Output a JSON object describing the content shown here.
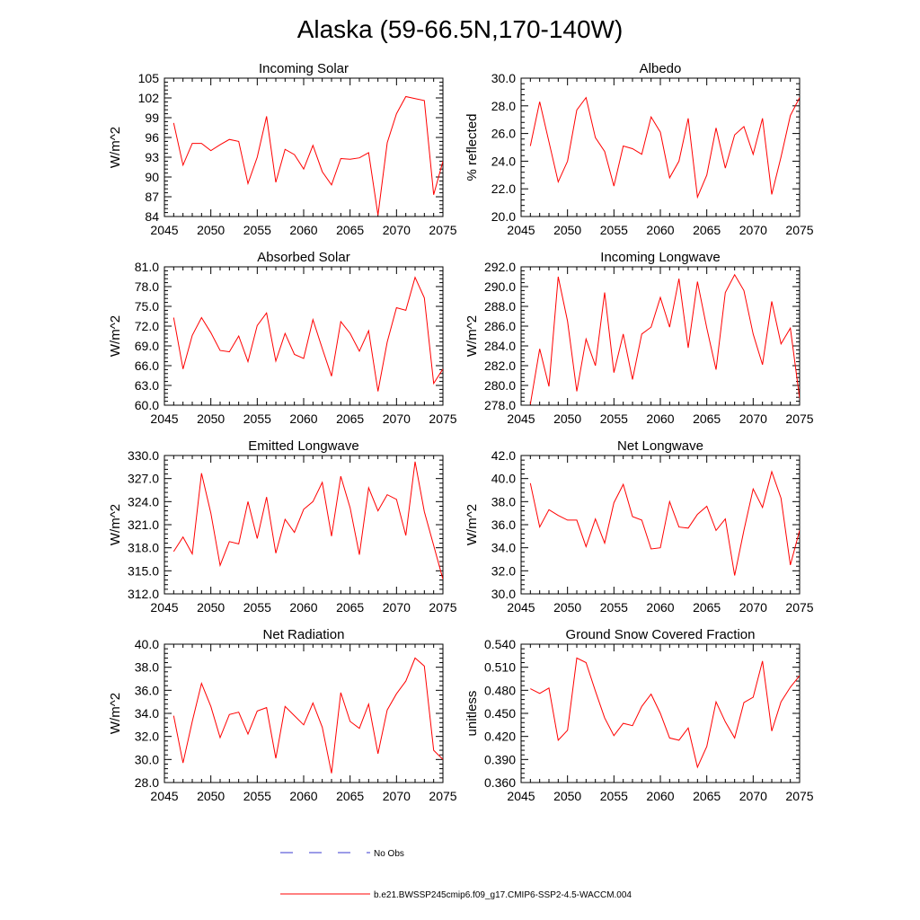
{
  "title": "Alaska (59-66.5N,170-140W)",
  "legend": {
    "obs_label": "No Obs",
    "model_label": "b.e21.BWSSP245cmip6.f09_g17.CMIP6-SSP2-4.5-WACCM.004",
    "obs_color": "#3a3ad0",
    "model_color": "#ff0000"
  },
  "chart_data": [
    {
      "type": "line",
      "title": "Incoming Solar",
      "ylabel": "W/m^2",
      "xlim": [
        2045,
        2075
      ],
      "ylim": [
        84,
        105
      ],
      "xticks": [
        "2045",
        "2050",
        "2055",
        "2060",
        "2065",
        "2070",
        "2075"
      ],
      "yticks": [
        "84",
        "87",
        "90",
        "93",
        "96",
        "99",
        "102",
        "105"
      ],
      "grid": false,
      "x": [
        2046,
        2047,
        2048,
        2049,
        2050,
        2051,
        2052,
        2053,
        2054,
        2055,
        2056,
        2057,
        2058,
        2059,
        2060,
        2061,
        2062,
        2063,
        2064,
        2065,
        2066,
        2067,
        2068,
        2069,
        2070,
        2071,
        2072,
        2073,
        2074,
        2075
      ],
      "series": [
        {
          "values": [
            98.2,
            91.8,
            95.1,
            95.1,
            94.0,
            94.9,
            95.7,
            95.4,
            89.0,
            93.0,
            99.2,
            89.2,
            94.2,
            93.4,
            91.2,
            94.8,
            90.8,
            88.8,
            92.8,
            92.7,
            92.9,
            93.7,
            84.2,
            95.2,
            99.6,
            102.2,
            101.9,
            101.6,
            87.3,
            92.4
          ]
        }
      ]
    },
    {
      "type": "line",
      "title": "Albedo",
      "ylabel": "% reflected",
      "xlim": [
        2045,
        2075
      ],
      "ylim": [
        20,
        30
      ],
      "xticks": [
        "2045",
        "2050",
        "2055",
        "2060",
        "2065",
        "2070",
        "2075"
      ],
      "yticks": [
        "20.0",
        "22.0",
        "24.0",
        "26.0",
        "28.0",
        "30.0"
      ],
      "grid": false,
      "x": [
        2046,
        2047,
        2048,
        2049,
        2050,
        2051,
        2052,
        2053,
        2054,
        2055,
        2056,
        2057,
        2058,
        2059,
        2060,
        2061,
        2062,
        2063,
        2064,
        2065,
        2066,
        2067,
        2068,
        2069,
        2070,
        2071,
        2072,
        2073,
        2074,
        2075
      ],
      "series": [
        {
          "values": [
            25.1,
            28.3,
            25.4,
            22.5,
            24.0,
            27.7,
            28.6,
            25.7,
            24.7,
            22.2,
            25.1,
            24.9,
            24.5,
            27.2,
            26.1,
            22.8,
            24.0,
            27.1,
            21.4,
            23.0,
            26.4,
            23.5,
            25.9,
            26.5,
            24.5,
            27.1,
            21.6,
            24.3,
            27.3,
            28.6
          ]
        }
      ]
    },
    {
      "type": "line",
      "title": "Absorbed Solar",
      "ylabel": "W/m^2",
      "xlim": [
        2045,
        2075
      ],
      "ylim": [
        60,
        81
      ],
      "xticks": [
        "2045",
        "2050",
        "2055",
        "2060",
        "2065",
        "2070",
        "2075"
      ],
      "yticks": [
        "60.0",
        "63.0",
        "66.0",
        "69.0",
        "72.0",
        "75.0",
        "78.0",
        "81.0"
      ],
      "grid": false,
      "x": [
        2046,
        2047,
        2048,
        2049,
        2050,
        2051,
        2052,
        2053,
        2054,
        2055,
        2056,
        2057,
        2058,
        2059,
        2060,
        2061,
        2062,
        2063,
        2064,
        2065,
        2066,
        2067,
        2068,
        2069,
        2070,
        2071,
        2072,
        2073,
        2074,
        2075
      ],
      "series": [
        {
          "values": [
            73.3,
            65.5,
            70.6,
            73.3,
            71.0,
            68.3,
            68.1,
            70.5,
            66.6,
            72.1,
            74.0,
            66.7,
            70.9,
            67.7,
            67.1,
            73.0,
            68.6,
            64.4,
            72.7,
            70.9,
            68.2,
            71.3,
            62.1,
            69.6,
            74.8,
            74.4,
            79.4,
            76.3,
            63.3,
            65.5
          ]
        }
      ]
    },
    {
      "type": "line",
      "title": "Incoming Longwave",
      "ylabel": "W/m^2",
      "xlim": [
        2045,
        2075
      ],
      "ylim": [
        278,
        292
      ],
      "xticks": [
        "2045",
        "2050",
        "2055",
        "2060",
        "2065",
        "2070",
        "2075"
      ],
      "yticks": [
        "278.0",
        "280.0",
        "282.0",
        "284.0",
        "286.0",
        "288.0",
        "290.0",
        "292.0"
      ],
      "grid": false,
      "x": [
        2046,
        2047,
        2048,
        2049,
        2050,
        2051,
        2052,
        2053,
        2054,
        2055,
        2056,
        2057,
        2058,
        2059,
        2060,
        2061,
        2062,
        2063,
        2064,
        2065,
        2066,
        2067,
        2068,
        2069,
        2070,
        2071,
        2072,
        2073,
        2074,
        2075
      ],
      "series": [
        {
          "values": [
            278.1,
            283.7,
            279.9,
            291.0,
            286.5,
            279.4,
            284.7,
            282.0,
            289.4,
            281.3,
            285.2,
            280.6,
            285.2,
            285.9,
            288.9,
            285.9,
            290.8,
            283.8,
            290.5,
            285.8,
            281.6,
            289.4,
            291.2,
            289.6,
            285.2,
            282.1,
            288.5,
            284.2,
            285.8,
            278.7
          ]
        }
      ]
    },
    {
      "type": "line",
      "title": "Emitted Longwave",
      "ylabel": "W/m^2",
      "xlim": [
        2045,
        2075
      ],
      "ylim": [
        312,
        330
      ],
      "xticks": [
        "2045",
        "2050",
        "2055",
        "2060",
        "2065",
        "2070",
        "2075"
      ],
      "yticks": [
        "312.0",
        "315.0",
        "318.0",
        "321.0",
        "324.0",
        "327.0",
        "330.0"
      ],
      "grid": false,
      "x": [
        2046,
        2047,
        2048,
        2049,
        2050,
        2051,
        2052,
        2053,
        2054,
        2055,
        2056,
        2057,
        2058,
        2059,
        2060,
        2061,
        2062,
        2063,
        2064,
        2065,
        2066,
        2067,
        2068,
        2069,
        2070,
        2071,
        2072,
        2073,
        2074,
        2075
      ],
      "series": [
        {
          "values": [
            317.5,
            319.4,
            317.2,
            327.7,
            322.5,
            315.7,
            318.8,
            318.5,
            324.0,
            319.2,
            324.6,
            317.3,
            321.7,
            320.0,
            323.0,
            324.0,
            326.5,
            319.5,
            327.3,
            323.2,
            317.1,
            325.8,
            322.8,
            324.9,
            324.3,
            319.6,
            329.2,
            322.7,
            318.3,
            313.9
          ]
        }
      ]
    },
    {
      "type": "line",
      "title": "Net Longwave",
      "ylabel": "W/m^2",
      "xlim": [
        2045,
        2075
      ],
      "ylim": [
        30,
        42
      ],
      "xticks": [
        "2045",
        "2050",
        "2055",
        "2060",
        "2065",
        "2070",
        "2075"
      ],
      "yticks": [
        "30.0",
        "32.0",
        "34.0",
        "36.0",
        "38.0",
        "40.0",
        "42.0"
      ],
      "grid": false,
      "x": [
        2046,
        2047,
        2048,
        2049,
        2050,
        2051,
        2052,
        2053,
        2054,
        2055,
        2056,
        2057,
        2058,
        2059,
        2060,
        2061,
        2062,
        2063,
        2064,
        2065,
        2066,
        2067,
        2068,
        2069,
        2070,
        2071,
        2072,
        2073,
        2074,
        2075
      ],
      "series": [
        {
          "values": [
            39.6,
            35.8,
            37.3,
            36.8,
            36.4,
            36.4,
            34.1,
            36.5,
            34.4,
            37.9,
            39.5,
            36.7,
            36.4,
            33.9,
            34.0,
            38.0,
            35.8,
            35.7,
            36.9,
            37.6,
            35.5,
            36.5,
            31.6,
            35.5,
            39.1,
            37.5,
            40.6,
            38.3,
            32.5,
            35.5
          ]
        }
      ]
    },
    {
      "type": "line",
      "title": "Net Radiation",
      "ylabel": "W/m^2",
      "xlim": [
        2045,
        2075
      ],
      "ylim": [
        28,
        40
      ],
      "xticks": [
        "2045",
        "2050",
        "2055",
        "2060",
        "2065",
        "2070",
        "2075"
      ],
      "yticks": [
        "28.0",
        "30.0",
        "32.0",
        "34.0",
        "36.0",
        "38.0",
        "40.0"
      ],
      "grid": false,
      "x": [
        2046,
        2047,
        2048,
        2049,
        2050,
        2051,
        2052,
        2053,
        2054,
        2055,
        2056,
        2057,
        2058,
        2059,
        2060,
        2061,
        2062,
        2063,
        2064,
        2065,
        2066,
        2067,
        2068,
        2069,
        2070,
        2071,
        2072,
        2073,
        2074,
        2075
      ],
      "series": [
        {
          "values": [
            33.8,
            29.7,
            33.3,
            36.6,
            34.6,
            31.9,
            33.9,
            34.1,
            32.2,
            34.2,
            34.5,
            30.1,
            34.6,
            33.8,
            33.0,
            34.9,
            32.8,
            28.8,
            35.8,
            33.3,
            32.7,
            34.8,
            30.5,
            34.3,
            35.7,
            36.8,
            38.8,
            38.1,
            30.8,
            30.0
          ]
        }
      ]
    },
    {
      "type": "line",
      "title": "Ground Snow Covered Fraction",
      "ylabel": "unitless",
      "xlim": [
        2045,
        2075
      ],
      "ylim": [
        0.36,
        0.54
      ],
      "xticks": [
        "2045",
        "2050",
        "2055",
        "2060",
        "2065",
        "2070",
        "2075"
      ],
      "yticks": [
        "0.360",
        "0.390",
        "0.420",
        "0.450",
        "0.480",
        "0.510",
        "0.540"
      ],
      "grid": false,
      "x": [
        2046,
        2047,
        2048,
        2049,
        2050,
        2051,
        2052,
        2053,
        2054,
        2055,
        2056,
        2057,
        2058,
        2059,
        2060,
        2061,
        2062,
        2063,
        2064,
        2065,
        2066,
        2067,
        2068,
        2069,
        2070,
        2071,
        2072,
        2073,
        2074,
        2075
      ],
      "series": [
        {
          "values": [
            0.482,
            0.476,
            0.483,
            0.415,
            0.428,
            0.522,
            0.516,
            0.479,
            0.444,
            0.421,
            0.437,
            0.434,
            0.459,
            0.475,
            0.45,
            0.418,
            0.415,
            0.431,
            0.38,
            0.407,
            0.465,
            0.439,
            0.418,
            0.464,
            0.471,
            0.518,
            0.427,
            0.465,
            0.484,
            0.499
          ]
        }
      ]
    }
  ]
}
